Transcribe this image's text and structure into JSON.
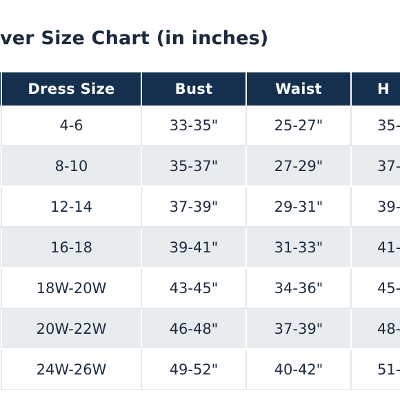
{
  "page": {
    "title": "ver Size Chart (in inches)"
  },
  "table": {
    "headers": [
      "",
      "Dress Size",
      "Bust",
      "Waist",
      "H"
    ],
    "rows": [
      [
        "",
        "4-6",
        "33-35\"",
        "25-27\"",
        "35-"
      ],
      [
        "",
        "8-10",
        "35-37\"",
        "27-29\"",
        "37-"
      ],
      [
        "",
        "12-14",
        "37-39\"",
        "29-31\"",
        "39-"
      ],
      [
        "",
        "16-18",
        "39-41\"",
        "31-33\"",
        "41-"
      ],
      [
        "",
        "18W-20W",
        "43-45\"",
        "34-36\"",
        "45-"
      ],
      [
        "",
        "20W-22W",
        "46-48\"",
        "37-39\"",
        "48-"
      ],
      [
        "",
        "24W-26W",
        "49-52\"",
        "40-42\"",
        "51-"
      ]
    ]
  },
  "colors": {
    "header_bg": "#15304f",
    "text": "#1b2a3e",
    "stripe": "#e8ecef"
  }
}
